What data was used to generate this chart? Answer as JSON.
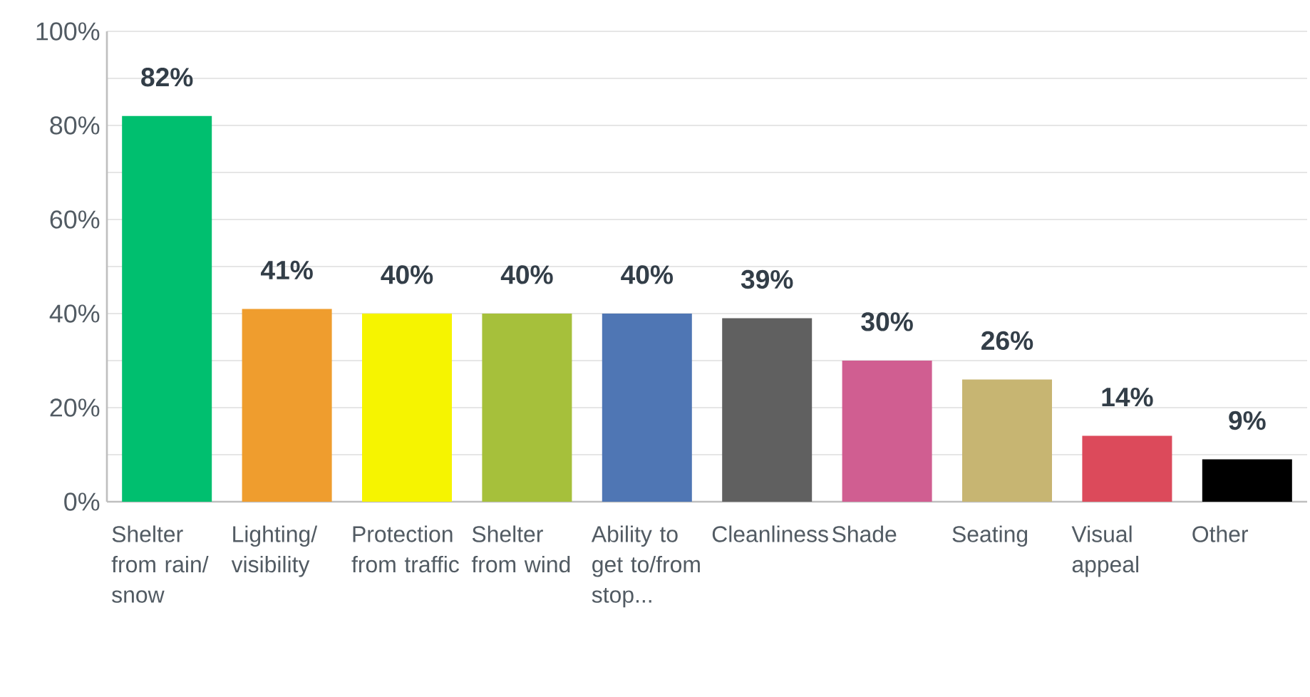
{
  "chart_data": {
    "type": "bar",
    "categories": [
      "Shelter from rain/snow",
      "Lighting/visibility",
      "Protection from traffic",
      "Shelter from wind",
      "Ability to get to/from stop...",
      "Cleanliness",
      "Shade",
      "Seating",
      "Visual appeal",
      "Other"
    ],
    "values": [
      82,
      41,
      40,
      40,
      40,
      39,
      30,
      26,
      14,
      9
    ],
    "value_labels": [
      "82%",
      "41%",
      "40%",
      "40%",
      "40%",
      "39%",
      "30%",
      "26%",
      "14%",
      "9%"
    ],
    "colors": [
      "#00bf6f",
      "#ef9d2e",
      "#f6f400",
      "#a6c03b",
      "#4f76b4",
      "#606060",
      "#d05e91",
      "#c7b572",
      "#dc4a5b",
      "#000000"
    ],
    "ylim": [
      0,
      100
    ],
    "yticks": [
      {
        "value": 0,
        "label": "0%"
      },
      {
        "value": 10,
        "label": null
      },
      {
        "value": 20,
        "label": "20%"
      },
      {
        "value": 30,
        "label": null
      },
      {
        "value": 40,
        "label": "40%"
      },
      {
        "value": 50,
        "label": null
      },
      {
        "value": 60,
        "label": "60%"
      },
      {
        "value": 70,
        "label": null
      },
      {
        "value": 80,
        "label": "80%"
      },
      {
        "value": 90,
        "label": null
      },
      {
        "value": 100,
        "label": "100%"
      }
    ],
    "grid": true
  }
}
